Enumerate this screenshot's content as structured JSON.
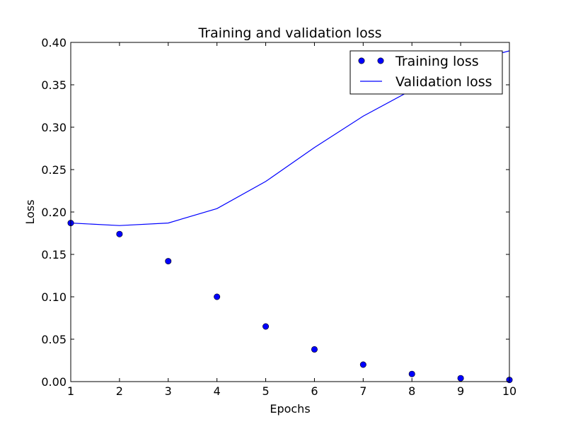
{
  "chart_data": {
    "type": "line",
    "title": "Training and validation loss",
    "xlabel": "Epochs",
    "ylabel": "Loss",
    "xlim": [
      1,
      10
    ],
    "ylim": [
      0,
      0.4
    ],
    "x_ticks": [
      "1",
      "2",
      "3",
      "4",
      "5",
      "6",
      "7",
      "8",
      "9",
      "10"
    ],
    "y_ticks": [
      "0.00",
      "0.05",
      "0.10",
      "0.15",
      "0.20",
      "0.25",
      "0.30",
      "0.35",
      "0.40"
    ],
    "grid": false,
    "legend_position": "top-right",
    "x": [
      1,
      2,
      3,
      4,
      5,
      6,
      7,
      8,
      9,
      10
    ],
    "series": [
      {
        "name": "Training loss",
        "style": "markers",
        "color": "#0000ff",
        "values": [
          0.187,
          0.174,
          0.142,
          0.1,
          0.065,
          0.038,
          0.02,
          0.009,
          0.004,
          0.002
        ]
      },
      {
        "name": "Validation loss",
        "style": "line",
        "color": "#0000ff",
        "values": [
          0.187,
          0.184,
          0.187,
          0.204,
          0.236,
          0.276,
          0.313,
          0.344,
          0.375,
          0.39
        ]
      }
    ]
  }
}
